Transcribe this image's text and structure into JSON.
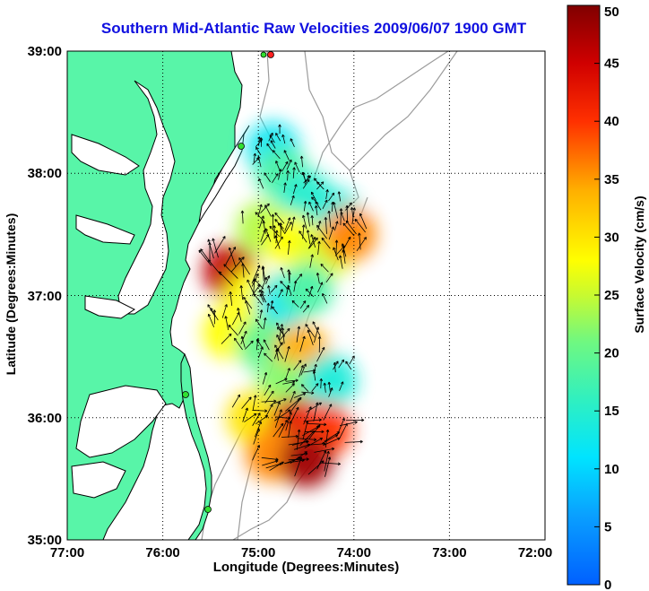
{
  "title": "Southern Mid-Atlantic Raw Velocities 2009/06/07 1900 GMT",
  "xlabel": "Longitude (Degrees:Minutes)",
  "ylabel": "Latitude (Degrees:Minutes)",
  "colorbar": {
    "label": "Surface Velocity (cm/s)",
    "min": 0,
    "max": 50,
    "ticks": [
      "0",
      "5",
      "10",
      "15",
      "20",
      "25",
      "30",
      "35",
      "40",
      "45",
      "50"
    ]
  },
  "map": {
    "lon_range": [
      -77,
      -72
    ],
    "lat_range": [
      35,
      39
    ],
    "x_ticks": [
      "77:00",
      "76:00",
      "75:00",
      "74:00",
      "73:00",
      "72:00"
    ],
    "y_ticks": [
      "35:00",
      "36:00",
      "37:00",
      "38:00",
      "39:00"
    ],
    "grid": "dotted",
    "land_color": "#58f5a8",
    "coast_color": "#000000",
    "bathymetry_color": "#9c9c9c",
    "station_color": "#30e030"
  },
  "chart_data": {
    "type": "heatmap",
    "title": "Southern Mid-Atlantic Raw Velocities 2009/06/07 1900 GMT",
    "xlabel": "Longitude (Degrees:Minutes)",
    "ylabel": "Latitude (Degrees:Minutes)",
    "xlim": [
      -77,
      -72
    ],
    "ylim": [
      35,
      39
    ],
    "colorbar_range": [
      0,
      50
    ],
    "colorbar_label": "Surface Velocity (cm/s)",
    "velocity_regions": [
      {
        "lon": -74.85,
        "lat": 38.2,
        "speed": 12
      },
      {
        "lon": -74.75,
        "lat": 38.0,
        "speed": 18
      },
      {
        "lon": -74.5,
        "lat": 37.8,
        "speed": 15
      },
      {
        "lon": -74.2,
        "lat": 37.65,
        "speed": 14
      },
      {
        "lon": -74.95,
        "lat": 37.55,
        "speed": 24
      },
      {
        "lon": -74.65,
        "lat": 37.45,
        "speed": 28
      },
      {
        "lon": -74.3,
        "lat": 37.35,
        "speed": 26
      },
      {
        "lon": -74.05,
        "lat": 37.5,
        "speed": 36
      },
      {
        "lon": -75.3,
        "lat": 37.2,
        "speed": 46
      },
      {
        "lon": -75.05,
        "lat": 37.0,
        "speed": 28
      },
      {
        "lon": -74.75,
        "lat": 36.95,
        "speed": 12
      },
      {
        "lon": -74.5,
        "lat": 37.05,
        "speed": 18
      },
      {
        "lon": -75.3,
        "lat": 36.7,
        "speed": 28
      },
      {
        "lon": -74.95,
        "lat": 36.6,
        "speed": 20
      },
      {
        "lon": -74.55,
        "lat": 36.55,
        "speed": 34
      },
      {
        "lon": -74.75,
        "lat": 36.25,
        "speed": 22
      },
      {
        "lon": -74.25,
        "lat": 36.3,
        "speed": 14
      },
      {
        "lon": -75.05,
        "lat": 36.0,
        "speed": 30
      },
      {
        "lon": -74.6,
        "lat": 35.95,
        "speed": 44
      },
      {
        "lon": -74.3,
        "lat": 35.9,
        "speed": 40
      },
      {
        "lon": -74.85,
        "lat": 35.7,
        "speed": 36
      },
      {
        "lon": -74.5,
        "lat": 35.65,
        "speed": 48
      }
    ]
  }
}
